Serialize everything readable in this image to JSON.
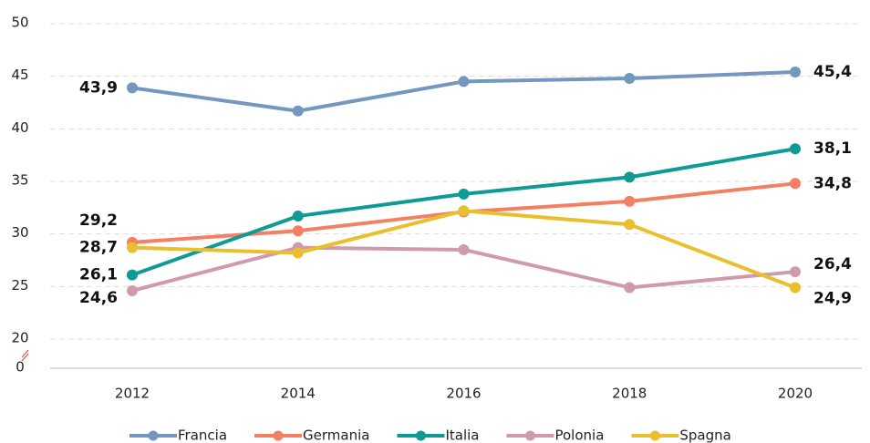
{
  "chart_data": {
    "type": "line",
    "categories": [
      "2012",
      "2014",
      "2016",
      "2018",
      "2020"
    ],
    "series": [
      {
        "name": "Francia",
        "color": "#7397bf",
        "values": [
          43.9,
          41.7,
          44.5,
          44.8,
          45.4
        ],
        "value_labels": [
          "43,9",
          null,
          null,
          null,
          "45,4"
        ]
      },
      {
        "name": "Germania",
        "color": "#f47f63",
        "values": [
          29.2,
          30.3,
          32.1,
          33.1,
          34.8
        ],
        "value_labels": [
          "29,2",
          null,
          null,
          null,
          "34,8"
        ]
      },
      {
        "name": "Italia",
        "color": "#0e9a95",
        "values": [
          26.1,
          31.7,
          33.8,
          35.4,
          38.1
        ],
        "value_labels": [
          "26,1",
          null,
          null,
          null,
          "38,1"
        ]
      },
      {
        "name": "Polonia",
        "color": "#cf9bab",
        "values": [
          24.6,
          28.7,
          28.5,
          24.9,
          26.4
        ],
        "value_labels": [
          "24,6",
          null,
          null,
          null,
          "26,4"
        ]
      },
      {
        "name": "Spagna",
        "color": "#e9bf2d",
        "values": [
          28.7,
          28.2,
          32.2,
          30.9,
          24.9
        ],
        "value_labels": [
          "28,7",
          null,
          null,
          null,
          "24,9"
        ]
      }
    ],
    "ylim": [
      0,
      50
    ],
    "yticks": [
      0,
      20,
      25,
      30,
      35,
      40,
      45,
      50
    ],
    "axis_break": [
      0,
      20
    ],
    "grid": true,
    "legend": "bottom"
  }
}
